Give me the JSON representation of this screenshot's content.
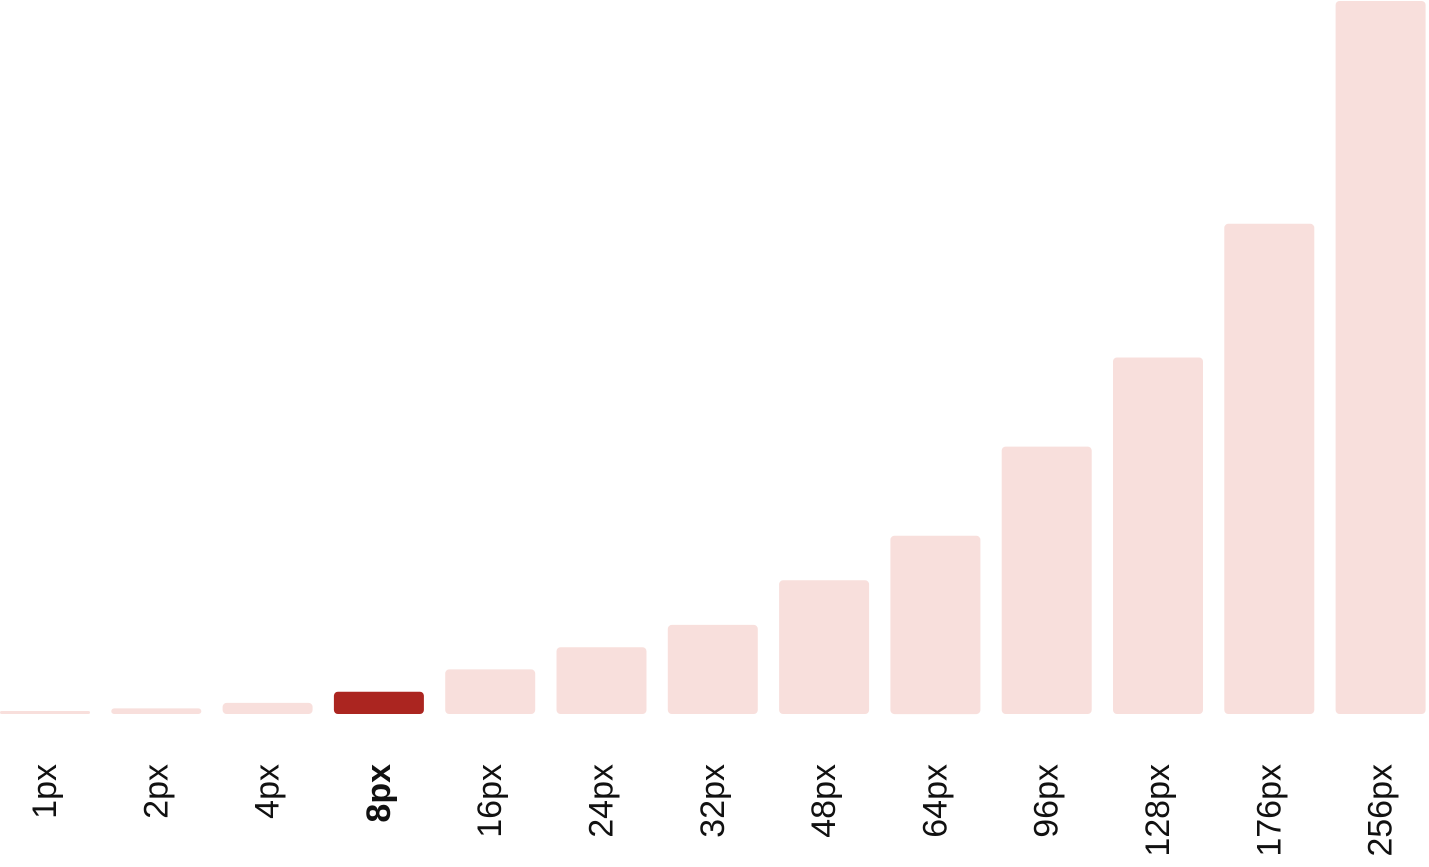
{
  "chart_data": {
    "type": "bar",
    "title": "",
    "xlabel": "",
    "ylabel": "",
    "categories": [
      "1px",
      "2px",
      "4px",
      "8px",
      "16px",
      "24px",
      "32px",
      "48px",
      "64px",
      "96px",
      "128px",
      "176px",
      "256px"
    ],
    "values": [
      1,
      2,
      4,
      8,
      16,
      24,
      32,
      48,
      64,
      96,
      128,
      176,
      256
    ],
    "ylim": [
      0,
      256
    ],
    "highlight_index": 3,
    "grid": false,
    "legend": "none",
    "colors": {
      "bar": "#f8dfdc",
      "highlight": "#ab2520",
      "label": "#111111"
    }
  }
}
